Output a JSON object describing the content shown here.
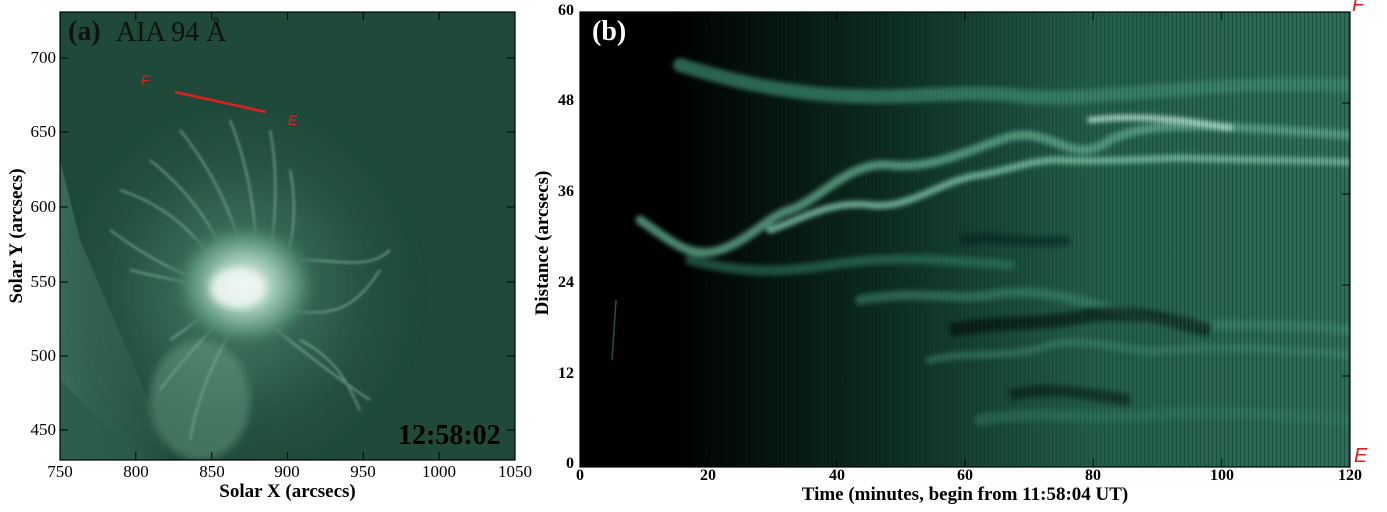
{
  "panel_a": {
    "label": "(a)",
    "title": "AIA 94 Å",
    "timestamp": "12:58:02",
    "xlabel": "Solar X (arcsecs)",
    "ylabel": "Solar Y (arcsecs)",
    "x_ticks": [
      "750",
      "800",
      "850",
      "900",
      "950",
      "1000",
      "1050"
    ],
    "y_ticks": [
      "700",
      "650",
      "600",
      "550",
      "500",
      "450"
    ],
    "slit_start_label": "F",
    "slit_end_label": "E",
    "background_color": "#1f4a3a",
    "slit_color": "#e02020"
  },
  "panel_b": {
    "label": "(b)",
    "xlabel": "Time (minutes, begin from 11:58:04 UT)",
    "ylabel": "Distance (arcsecs)",
    "x_ticks": [
      "0",
      "20",
      "40",
      "60",
      "80",
      "100",
      "120"
    ],
    "y_ticks": [
      "0",
      "12",
      "24",
      "36",
      "48",
      "60"
    ],
    "top_right_label": "F",
    "bottom_right_label": "E",
    "colormap_color": "#2f7a62",
    "marker_color": "#e02020"
  }
}
